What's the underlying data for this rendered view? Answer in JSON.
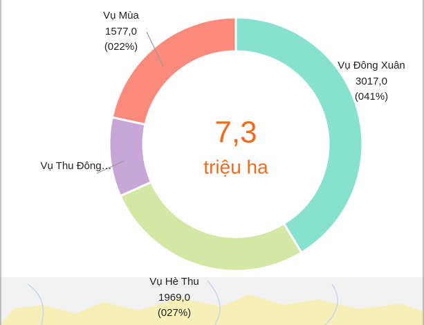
{
  "chart_data": {
    "type": "donut",
    "categories": [
      "Vụ Đông Xuân",
      "Vụ Hè Thu",
      "Vụ Thu Đông…",
      "Vụ Mùa"
    ],
    "values": [
      3017,
      1969,
      737,
      1577
    ],
    "value_labels": [
      "3017,0",
      "1969,0",
      null,
      "1577,0"
    ],
    "percent_labels": [
      "(041%)",
      "(027%)",
      null,
      "(022%)"
    ],
    "colors": [
      "#87e1cf",
      "#d4e8a6",
      "#c8a6d7",
      "#fa8a7c"
    ],
    "center_label": "7,3",
    "center_unit": "triệu ha"
  }
}
